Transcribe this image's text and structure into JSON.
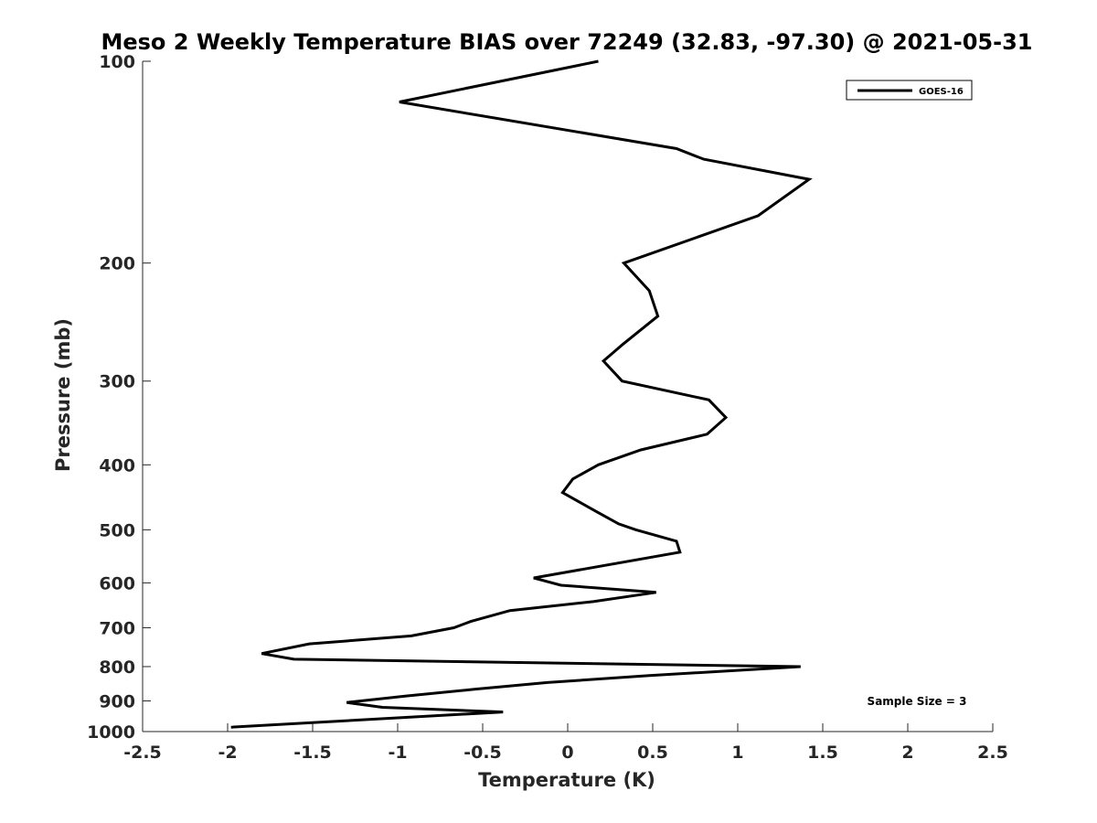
{
  "chart_data": {
    "type": "line",
    "title": "Meso 2 Weekly Temperature BIAS over 72249 (32.83, -97.30) @ 2021-05-31",
    "xlabel": "Temperature (K)",
    "ylabel": "Pressure (mb)",
    "xlim": [
      -2.5,
      2.5
    ],
    "ylim": [
      100,
      1000
    ],
    "y_scale": "log",
    "y_reversed": true,
    "x_ticks": [
      "-2.5",
      "-2",
      "-1.5",
      "-1",
      "-0.5",
      "0",
      "0.5",
      "1",
      "1.5",
      "2",
      "2.5"
    ],
    "x_tick_values": [
      -2.5,
      -2,
      -1.5,
      -1,
      -0.5,
      0,
      0.5,
      1,
      1.5,
      2,
      2.5
    ],
    "y_ticks": [
      "100",
      "200",
      "300",
      "400",
      "500",
      "600",
      "700",
      "800",
      "900",
      "1000"
    ],
    "y_tick_values": [
      100,
      200,
      300,
      400,
      500,
      600,
      700,
      800,
      900,
      1000
    ],
    "grid": false,
    "legend_position": "top-right",
    "annotation": "Sample Size = 3",
    "series": [
      {
        "name": "GOES-16",
        "color": "#000000",
        "points": [
          {
            "t": 0.18,
            "p": 100
          },
          {
            "t": -0.99,
            "p": 115
          },
          {
            "t": 0.64,
            "p": 135
          },
          {
            "t": 0.8,
            "p": 140
          },
          {
            "t": 1.42,
            "p": 150
          },
          {
            "t": 1.12,
            "p": 170
          },
          {
            "t": 0.33,
            "p": 200
          },
          {
            "t": 0.48,
            "p": 220
          },
          {
            "t": 0.53,
            "p": 240
          },
          {
            "t": 0.32,
            "p": 265
          },
          {
            "t": 0.21,
            "p": 280
          },
          {
            "t": 0.32,
            "p": 300
          },
          {
            "t": 0.83,
            "p": 320
          },
          {
            "t": 0.93,
            "p": 340
          },
          {
            "t": 0.82,
            "p": 360
          },
          {
            "t": 0.43,
            "p": 380
          },
          {
            "t": 0.18,
            "p": 400
          },
          {
            "t": 0.03,
            "p": 420
          },
          {
            "t": -0.03,
            "p": 440
          },
          {
            "t": 0.17,
            "p": 470
          },
          {
            "t": 0.3,
            "p": 490
          },
          {
            "t": 0.4,
            "p": 500
          },
          {
            "t": 0.64,
            "p": 520
          },
          {
            "t": 0.66,
            "p": 540
          },
          {
            "t": -0.2,
            "p": 590
          },
          {
            "t": -0.04,
            "p": 605
          },
          {
            "t": 0.52,
            "p": 620
          },
          {
            "t": 0.15,
            "p": 640
          },
          {
            "t": -0.34,
            "p": 660
          },
          {
            "t": -0.57,
            "p": 685
          },
          {
            "t": -0.67,
            "p": 700
          },
          {
            "t": -0.92,
            "p": 720
          },
          {
            "t": -1.52,
            "p": 740
          },
          {
            "t": -1.8,
            "p": 765
          },
          {
            "t": -1.61,
            "p": 780
          },
          {
            "t": 1.37,
            "p": 800
          },
          {
            "t": 0.48,
            "p": 825
          },
          {
            "t": -0.12,
            "p": 845
          },
          {
            "t": -0.55,
            "p": 865
          },
          {
            "t": -0.95,
            "p": 885
          },
          {
            "t": -1.3,
            "p": 905
          },
          {
            "t": -1.09,
            "p": 920
          },
          {
            "t": -0.38,
            "p": 935
          },
          {
            "t": -1.98,
            "p": 985
          }
        ]
      }
    ]
  }
}
